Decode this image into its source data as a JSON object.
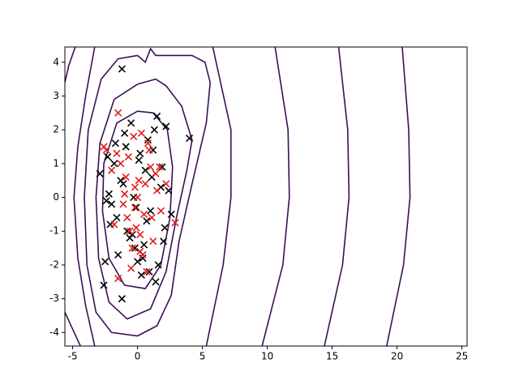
{
  "chart_data": {
    "type": "scatter",
    "xlim": [
      -5.6,
      25.4
    ],
    "ylim": [
      -4.4,
      4.45
    ],
    "xticks": [
      -5,
      0,
      5,
      10,
      15,
      20,
      25
    ],
    "yticks": [
      -4,
      -3,
      -2,
      -1,
      0,
      1,
      2,
      3,
      4
    ],
    "marker": "x",
    "contour_color": "#3b0f55",
    "contours": [
      {
        "x": [
          -4.8,
          -5.3,
          -5.6,
          null,
          -5.6,
          -5.0,
          -4.4
        ],
        "y": [
          4.45,
          3.9,
          3.4,
          null,
          -3.4,
          -3.9,
          -4.4
        ]
      },
      {
        "x": [
          -3.3,
          -4.0,
          -4.6,
          -4.9,
          -4.6,
          -4.0,
          -3.3
        ],
        "y": [
          4.45,
          3.0,
          1.5,
          0,
          -1.8,
          -3.2,
          -4.4
        ]
      },
      {
        "x": [
          0,
          -1.5,
          -2.8,
          -3.8,
          -4.1,
          -3.9,
          -3.2,
          -2.0,
          0,
          1.5,
          2.6,
          3.2,
          4.2,
          5.3,
          5.6,
          5.2,
          4.2,
          1.4,
          1.0,
          0.6,
          0
        ],
        "y": [
          4.2,
          4.1,
          3.5,
          2.0,
          0,
          -2.0,
          -3.4,
          -4.0,
          -4.1,
          -3.8,
          -2.9,
          -1.3,
          0.4,
          2.2,
          3.4,
          4.0,
          4.2,
          4.2,
          4.4,
          4.0,
          4.2
        ]
      },
      {
        "x": [
          0,
          -1.8,
          -2.9,
          -3.2,
          -3.0,
          -2.2,
          -0.8,
          1.0,
          2.2,
          3.0,
          3.8,
          4.2,
          3.4,
          2.2,
          1.4,
          0
        ],
        "y": [
          3.35,
          2.9,
          1.6,
          0,
          -1.8,
          -3.1,
          -3.6,
          -3.3,
          -2.2,
          -0.6,
          0.8,
          1.7,
          2.7,
          3.3,
          3.5,
          3.35
        ]
      },
      {
        "x": [
          0,
          -1.6,
          -2.6,
          -2.7,
          -2.2,
          -1.0,
          0.6,
          1.8,
          2.5,
          2.7,
          2.3,
          1.2,
          0
        ],
        "y": [
          2.55,
          2.2,
          1.0,
          -0.4,
          -1.8,
          -2.6,
          -2.7,
          -2.0,
          -0.6,
          0.9,
          2.0,
          2.5,
          2.55
        ]
      },
      {
        "x": [
          5.8,
          7.2,
          7.2,
          6.6,
          5.3
        ],
        "y": [
          4.45,
          2,
          0,
          -2,
          -4.4
        ]
      },
      {
        "x": [
          10.6,
          11.6,
          11.7,
          11.2,
          9.6
        ],
        "y": [
          4.45,
          2,
          0,
          -2,
          -4.4
        ]
      },
      {
        "x": [
          15.5,
          16.2,
          16.3,
          15.8,
          14.4
        ],
        "y": [
          4.45,
          2,
          0,
          -2,
          -4.4
        ]
      },
      {
        "x": [
          20.4,
          20.9,
          21.0,
          20.5,
          19.2
        ],
        "y": [
          4.45,
          2,
          0,
          -2,
          -4.4
        ]
      }
    ],
    "series": [
      {
        "color": "#000000",
        "x": [
          -1.2,
          4.0,
          -1.2,
          -2.6,
          -2.5,
          -2.9,
          -2.3,
          2.2,
          1.5,
          -0.5,
          0.3,
          0.9,
          -1.0,
          1.2,
          -0.2,
          0.6,
          -1.6,
          2.0,
          -2.0,
          1.8,
          0.1,
          -0.8,
          1.0,
          -1.3,
          0.4,
          2.4,
          -2.1,
          1.6,
          -0.3,
          0.8,
          -1.8,
          2.1,
          -0.6,
          1.3,
          0.0,
          -1.1,
          0.7,
          -2.4,
          1.9,
          -0.9,
          0.5,
          -1.5,
          1.1,
          -0.1,
          2.6,
          -2.2,
          0.2,
          -0.4,
          1.4,
          -1.7
        ],
        "y": [
          3.8,
          1.75,
          -3.0,
          -2.6,
          -1.9,
          0.7,
          1.2,
          2.1,
          2.4,
          2.2,
          -2.3,
          -2.2,
          1.9,
          1.4,
          -1.5,
          0.8,
          -0.6,
          -1.3,
          -0.2,
          0.3,
          1.1,
          -1.0,
          -0.4,
          0.5,
          -1.8,
          0.2,
          -0.8,
          -2.0,
          0.0,
          1.7,
          1.0,
          -0.9,
          -1.2,
          2.0,
          -1.9,
          0.4,
          -0.7,
          -0.1,
          0.9,
          1.5,
          -1.4,
          -1.7,
          0.6,
          -0.3,
          -0.5,
          0.1,
          1.3,
          -1.1,
          -2.5,
          1.6
        ]
      },
      {
        "color": "#e31a1c",
        "x": [
          -1.5,
          -2.6,
          2.9,
          -1.5,
          -0.2,
          0.5,
          -0.7,
          1.0,
          0.2,
          -1.1,
          0.8,
          -0.4,
          1.5,
          -0.9,
          0.3,
          -1.8,
          1.2,
          0.0,
          -0.5,
          0.6,
          -1.3,
          1.8,
          -0.1,
          0.9,
          -2.0,
          0.4,
          -0.8,
          1.4,
          -0.3,
          0.7,
          -1.0,
          0.1,
          2.2,
          -0.6,
          1.1,
          -1.6,
          0.2,
          -2.4,
          1.7,
          -0.2
        ],
        "y": [
          2.5,
          1.5,
          -0.75,
          -2.4,
          0.3,
          -0.5,
          1.2,
          0.9,
          -1.1,
          -0.2,
          1.6,
          -1.5,
          0.2,
          0.6,
          1.9,
          -0.8,
          -1.3,
          0.0,
          -2.1,
          0.4,
          1.0,
          -0.4,
          -0.9,
          1.4,
          0.8,
          -1.7,
          -0.6,
          0.7,
          1.8,
          -2.2,
          0.1,
          0.5,
          0.4,
          -1.0,
          -0.6,
          1.3,
          -1.6,
          1.4,
          0.9,
          -0.3
        ]
      }
    ]
  }
}
